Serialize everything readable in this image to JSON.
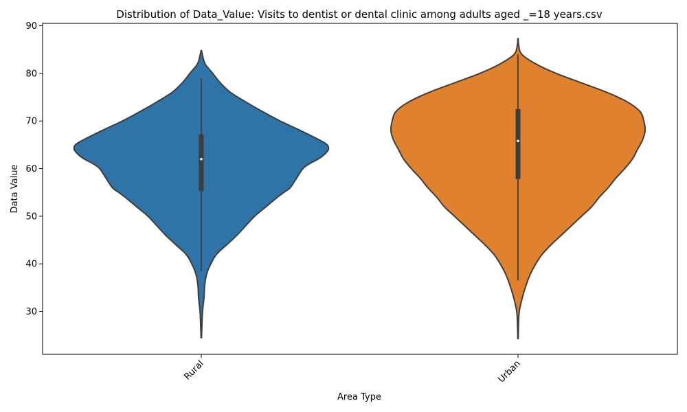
{
  "chart_data": {
    "type": "violin",
    "title": "Distribution of Data_Value: Visits to dentist or dental clinic among adults aged _=18 years.csv",
    "xlabel": "Area Type",
    "ylabel": "Data Value",
    "ylim": [
      21,
      90.5
    ],
    "yticks": [
      30,
      40,
      50,
      60,
      70,
      80,
      90
    ],
    "categories": [
      "Rural",
      "Urban"
    ],
    "grid": false,
    "violins": [
      {
        "category": "Rural",
        "color": "#2f74a8",
        "box": {
          "q1": 55.3,
          "median": 62.0,
          "q3": 67.2,
          "whisker_low": 38.5,
          "whisker_high": 79.0
        },
        "density": [
          [
            24.5,
            0.002
          ],
          [
            27,
            0.005
          ],
          [
            30,
            0.01
          ],
          [
            33,
            0.022
          ],
          [
            35,
            0.025
          ],
          [
            37,
            0.035
          ],
          [
            38.5,
            0.05
          ],
          [
            40,
            0.075
          ],
          [
            42,
            0.12
          ],
          [
            44,
            0.2
          ],
          [
            46,
            0.28
          ],
          [
            48,
            0.35
          ],
          [
            50,
            0.42
          ],
          [
            52,
            0.51
          ],
          [
            54,
            0.6
          ],
          [
            55,
            0.65
          ],
          [
            56,
            0.7
          ],
          [
            58,
            0.75
          ],
          [
            60,
            0.8
          ],
          [
            61,
            0.85
          ],
          [
            62,
            0.92
          ],
          [
            63,
            0.97
          ],
          [
            64,
            1.0
          ],
          [
            65,
            0.99
          ],
          [
            66,
            0.93
          ],
          [
            68,
            0.78
          ],
          [
            70,
            0.62
          ],
          [
            72,
            0.48
          ],
          [
            74,
            0.35
          ],
          [
            76,
            0.23
          ],
          [
            78,
            0.15
          ],
          [
            80,
            0.09
          ],
          [
            82,
            0.03
          ],
          [
            84,
            0.008
          ],
          [
            84.8,
            0.002
          ]
        ]
      },
      {
        "category": "Urban",
        "color": "#e0812e",
        "box": {
          "q1": 57.8,
          "median": 65.8,
          "q3": 72.5,
          "whisker_low": 36.5,
          "whisker_high": 84.0
        },
        "density": [
          [
            24.3,
            0.002
          ],
          [
            27,
            0.004
          ],
          [
            30,
            0.01
          ],
          [
            33,
            0.035
          ],
          [
            36,
            0.07
          ],
          [
            38,
            0.1
          ],
          [
            40,
            0.14
          ],
          [
            42,
            0.19
          ],
          [
            44,
            0.26
          ],
          [
            46,
            0.34
          ],
          [
            48,
            0.42
          ],
          [
            50,
            0.5
          ],
          [
            52,
            0.58
          ],
          [
            54,
            0.64
          ],
          [
            56,
            0.71
          ],
          [
            58,
            0.77
          ],
          [
            60,
            0.84
          ],
          [
            62,
            0.9
          ],
          [
            64,
            0.94
          ],
          [
            66,
            0.98
          ],
          [
            68,
            1.0
          ],
          [
            70,
            0.99
          ],
          [
            72,
            0.96
          ],
          [
            74,
            0.86
          ],
          [
            76,
            0.7
          ],
          [
            78,
            0.5
          ],
          [
            80,
            0.3
          ],
          [
            82,
            0.14
          ],
          [
            84,
            0.03
          ],
          [
            86,
            0.005
          ],
          [
            87.3,
            0.002
          ]
        ]
      }
    ]
  }
}
